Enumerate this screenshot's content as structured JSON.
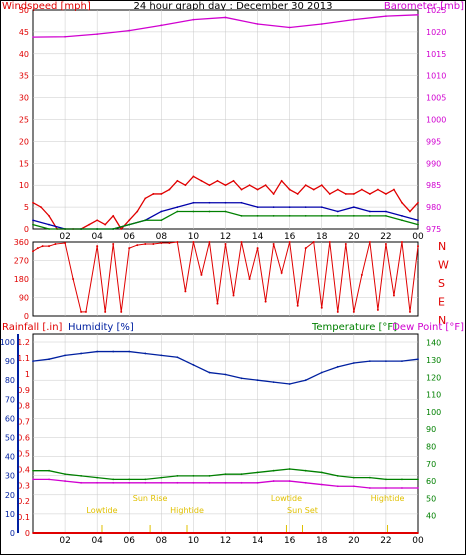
{
  "title": "24 hour graph day : December 30 2013",
  "colors": {
    "wind": "#e00000",
    "windAvg": "#0000aa",
    "windGust": "#008000",
    "baro": "#d000d0",
    "dir": "#e00000",
    "rain": "#e00000",
    "humidity": "#0020a0",
    "temp": "#008000",
    "dew": "#d000d0",
    "sunLabel": "#e0c000",
    "grid": "#c8c8c8"
  },
  "chart_data": [
    {
      "type": "line",
      "name": "wind-baro",
      "ylabel_left": "Windspeed [mph]",
      "ylabel_right": "Barometer [mb]",
      "ylim_left": [
        0,
        50
      ],
      "ylim_right": [
        975,
        1025
      ],
      "yticks_left": [
        "0",
        "5",
        "10",
        "15",
        "20",
        "25",
        "30",
        "35",
        "40",
        "45",
        "50"
      ],
      "yticks_right": [
        "975",
        "980",
        "985",
        "990",
        "995",
        "1000",
        "1005",
        "1010",
        "1015",
        "1020",
        "1025"
      ],
      "xticks": [
        "02",
        "04",
        "06",
        "08",
        "10",
        "12",
        "14",
        "16",
        "18",
        "20",
        "22",
        "00"
      ],
      "grid": true,
      "series": [
        {
          "key": "baro",
          "axis": "right",
          "x": [
            0,
            2,
            4,
            6,
            8,
            10,
            12,
            14,
            16,
            18,
            20,
            22,
            24
          ],
          "y": [
            1018.8,
            1018.9,
            1019.5,
            1020.3,
            1021.5,
            1022.8,
            1023.3,
            1021.8,
            1021.0,
            1021.8,
            1022.8,
            1023.6,
            1023.9
          ]
        },
        {
          "key": "wind",
          "axis": "left",
          "x": [
            0,
            0.5,
            1,
            1.5,
            2,
            2.5,
            3,
            3.5,
            4,
            4.5,
            5,
            5.5,
            6,
            6.5,
            7,
            7.5,
            8,
            8.5,
            9,
            9.5,
            10,
            10.5,
            11,
            11.5,
            12,
            12.5,
            13,
            13.5,
            14,
            14.5,
            15,
            15.5,
            16,
            16.5,
            17,
            17.5,
            18,
            18.5,
            19,
            19.5,
            20,
            20.5,
            21,
            21.5,
            22,
            22.5,
            23,
            23.5,
            24
          ],
          "y": [
            6,
            5,
            3,
            0,
            0,
            0,
            0,
            1,
            2,
            1,
            3,
            0,
            2,
            4,
            7,
            8,
            8,
            9,
            11,
            10,
            12,
            11,
            10,
            11,
            10,
            11,
            9,
            10,
            9,
            10,
            8,
            11,
            9,
            8,
            10,
            9,
            10,
            8,
            9,
            8,
            8,
            9,
            8,
            9,
            8,
            9,
            6,
            4,
            6
          ]
        },
        {
          "key": "windAvg",
          "axis": "left",
          "x": [
            0,
            1,
            2,
            3,
            4,
            5,
            6,
            7,
            8,
            9,
            10,
            11,
            12,
            13,
            14,
            15,
            16,
            17,
            18,
            19,
            20,
            21,
            22,
            23,
            24
          ],
          "y": [
            2,
            1,
            0,
            0,
            0,
            0,
            1,
            2,
            4,
            5,
            6,
            6,
            6,
            6,
            5,
            5,
            5,
            5,
            5,
            4,
            5,
            4,
            4,
            3,
            2
          ]
        },
        {
          "key": "windGust",
          "axis": "left",
          "x": [
            0,
            1,
            2,
            3,
            4,
            5,
            6,
            7,
            8,
            9,
            10,
            11,
            12,
            13,
            14,
            15,
            16,
            17,
            18,
            19,
            20,
            21,
            22,
            23,
            24
          ],
          "y": [
            1,
            0,
            0,
            0,
            0,
            0,
            1,
            2,
            2,
            4,
            4,
            4,
            4,
            3,
            3,
            3,
            3,
            3,
            3,
            3,
            3,
            3,
            3,
            2,
            1
          ]
        }
      ]
    },
    {
      "type": "scatter",
      "name": "wind-direction",
      "yticks": [
        "0",
        "90",
        "180",
        "270",
        "360"
      ],
      "ylim": [
        0,
        360
      ],
      "compass": [
        "N",
        "W",
        "S",
        "E",
        "N"
      ],
      "series": [
        {
          "key": "dir",
          "x": [
            0,
            0.3,
            0.6,
            1,
            1.4,
            2,
            2.5,
            3,
            3.3,
            4,
            4.5,
            5,
            5.5,
            6,
            6.5,
            7,
            7.5,
            8,
            8.5,
            9,
            9.5,
            10,
            10.5,
            11,
            11.5,
            12,
            12.5,
            13,
            13.5,
            14,
            14.5,
            15,
            15.5,
            16,
            16.5,
            17,
            17.5,
            18,
            18.5,
            19,
            19.5,
            20,
            20.5,
            21,
            21.5,
            22,
            22.5,
            23,
            23.5,
            24
          ],
          "y": [
            315,
            330,
            340,
            340,
            350,
            355,
            180,
            20,
            20,
            340,
            20,
            350,
            20,
            330,
            345,
            350,
            350,
            355,
            355,
            360,
            120,
            360,
            200,
            360,
            60,
            350,
            100,
            360,
            180,
            330,
            70,
            350,
            210,
            360,
            50,
            330,
            360,
            40,
            360,
            20,
            350,
            20,
            200,
            360,
            30,
            350,
            100,
            360,
            20,
            340
          ]
        }
      ]
    },
    {
      "type": "line",
      "name": "rain-humidity-temp",
      "ylabel_rain": "Rainfall [.in]",
      "ylabel_humidity": "Humidity [%]",
      "ylabel_temp": "Temperature [°F]",
      "ylabel_dew": "Dew Point [°F]",
      "yticks_humidity": [
        "0",
        "10",
        "20",
        "30",
        "40",
        "50",
        "60",
        "70",
        "80",
        "90",
        "100"
      ],
      "yticks_rain": [
        "0",
        "0.1",
        "0.2",
        "0.3",
        "0.4",
        "0.5",
        "0.6",
        "0.7",
        "0.8",
        "0.9",
        "1",
        "1.1",
        "1.2"
      ],
      "yticks_temp": [
        "40",
        "50",
        "60",
        "70",
        "80",
        "90",
        "100",
        "110",
        "120",
        "130",
        "140"
      ],
      "ylim_humidity": [
        0,
        100
      ],
      "ylim_temp": [
        30,
        145
      ],
      "xticks": [
        "02",
        "04",
        "06",
        "08",
        "10",
        "12",
        "14",
        "16",
        "18",
        "20",
        "22",
        "00"
      ],
      "annotations": [
        {
          "label": "Lowtide",
          "x": 4.3
        },
        {
          "label": "Sun Rise",
          "x": 7.3
        },
        {
          "label": "Hightide",
          "x": 9.6
        },
        {
          "label": "Lowtide",
          "x": 15.8
        },
        {
          "label": "Sun Set",
          "x": 16.8
        },
        {
          "label": "Hightide",
          "x": 22.1
        }
      ],
      "series": [
        {
          "key": "humidity",
          "axis": "humidity",
          "x": [
            0,
            1,
            2,
            3,
            4,
            5,
            6,
            7,
            8,
            9,
            10,
            11,
            12,
            13,
            14,
            15,
            16,
            17,
            18,
            19,
            20,
            21,
            22,
            23,
            24
          ],
          "y": [
            90,
            91,
            93,
            94,
            95,
            95,
            95,
            94,
            93,
            92,
            88,
            84,
            83,
            81,
            80,
            79,
            78,
            80,
            84,
            87,
            89,
            90,
            90,
            90,
            91
          ]
        },
        {
          "key": "temp",
          "axis": "temp",
          "x": [
            0,
            1,
            2,
            3,
            4,
            5,
            6,
            7,
            8,
            9,
            10,
            11,
            12,
            13,
            14,
            15,
            16,
            17,
            18,
            19,
            20,
            21,
            22,
            23,
            24
          ],
          "y": [
            66,
            66,
            64,
            63,
            62,
            61,
            61,
            61,
            62,
            63,
            63,
            63,
            64,
            64,
            65,
            66,
            67,
            66,
            65,
            63,
            62,
            62,
            61,
            61,
            61
          ]
        },
        {
          "key": "dew",
          "axis": "temp",
          "x": [
            0,
            1,
            2,
            3,
            4,
            5,
            6,
            7,
            8,
            9,
            10,
            11,
            12,
            13,
            14,
            15,
            16,
            17,
            18,
            19,
            20,
            21,
            22,
            23,
            24
          ],
          "y": [
            61,
            61,
            60,
            59,
            59,
            59,
            59,
            59,
            59,
            59,
            59,
            59,
            59,
            59,
            59,
            60,
            60,
            59,
            58,
            57,
            57,
            56,
            56,
            56,
            56
          ]
        },
        {
          "key": "rain",
          "axis": "humidity",
          "x": [
            0,
            24
          ],
          "y": [
            0,
            0
          ]
        }
      ]
    }
  ]
}
